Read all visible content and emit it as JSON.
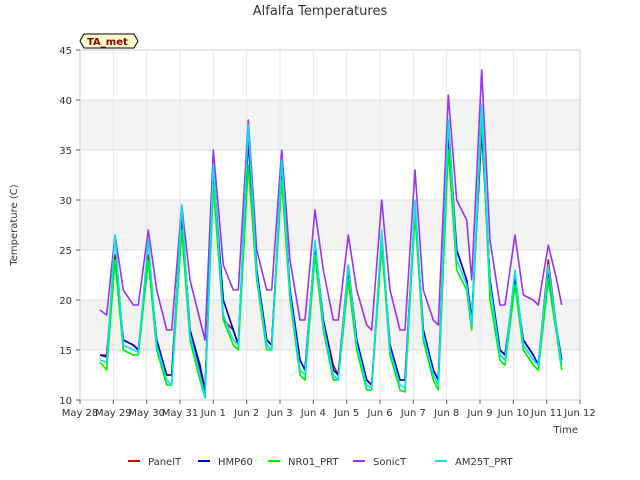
{
  "chart_data": {
    "type": "line",
    "title": "Alfalfa Temperatures",
    "xlabel": "Time",
    "ylabel": "Temperature (C)",
    "annotation": "TA_met",
    "xlim": [
      0,
      15
    ],
    "ylim": [
      10,
      45
    ],
    "x_ticks": [
      {
        "pos": 0,
        "label": "May 28"
      },
      {
        "pos": 1,
        "label": "May 29"
      },
      {
        "pos": 2,
        "label": "May 30"
      },
      {
        "pos": 3,
        "label": "May 31"
      },
      {
        "pos": 4,
        "label": "Jun 1"
      },
      {
        "pos": 5,
        "label": "Jun 2"
      },
      {
        "pos": 6,
        "label": "Jun 3"
      },
      {
        "pos": 7,
        "label": "Jun 4"
      },
      {
        "pos": 8,
        "label": "Jun 5"
      },
      {
        "pos": 9,
        "label": "Jun 6"
      },
      {
        "pos": 10,
        "label": "Jun 7"
      },
      {
        "pos": 11,
        "label": "Jun 8"
      },
      {
        "pos": 12,
        "label": "Jun 9"
      },
      {
        "pos": 13,
        "label": "Jun 10"
      },
      {
        "pos": 14,
        "label": "Jun 11"
      },
      {
        "pos": 15,
        "label": "Jun 12"
      }
    ],
    "y_ticks": [
      10,
      15,
      20,
      25,
      30,
      35,
      40,
      45
    ],
    "grid": true,
    "legend_position": "bottom",
    "series": [
      {
        "name": "PanelT",
        "color": "#cc0000",
        "x": [
          0.6,
          0.8,
          1.05,
          1.3,
          1.6,
          1.75,
          2.05,
          2.3,
          2.6,
          2.75,
          3.05,
          3.3,
          3.6,
          3.75,
          4.0,
          4.3,
          4.6,
          4.75,
          5.05,
          5.3,
          5.6,
          5.75,
          6.05,
          6.3,
          6.6,
          6.75,
          7.05,
          7.3,
          7.6,
          7.75,
          8.05,
          8.3,
          8.6,
          8.75,
          9.05,
          9.3,
          9.6,
          9.75,
          10.05,
          10.3,
          10.6,
          10.75,
          11.05,
          11.3,
          11.6,
          11.75,
          12.05,
          12.3,
          12.6,
          12.75,
          13.05,
          13.3,
          13.6,
          13.75,
          14.05,
          14.3,
          14.45
        ],
        "y": [
          14.5,
          14.5,
          24.5,
          16.0,
          15.5,
          15.0,
          24.5,
          16.0,
          12.5,
          12.5,
          28.5,
          17.0,
          13.0,
          10.5,
          33.5,
          18.0,
          17.0,
          15.5,
          37.0,
          23.0,
          16.0,
          15.5,
          33.5,
          21.0,
          14.0,
          13.0,
          25.5,
          18.0,
          13.5,
          12.5,
          23.5,
          16.0,
          12.0,
          11.5,
          26.0,
          15.5,
          12.0,
          12.0,
          29.5,
          17.0,
          13.0,
          12.0,
          38.0,
          25.0,
          22.0,
          18.0,
          37.5,
          22.0,
          15.0,
          14.5,
          22.0,
          16.0,
          14.5,
          13.5,
          24.0,
          17.0,
          14.0
        ]
      },
      {
        "name": "HMP60",
        "color": "#0000cc",
        "x": [
          0.6,
          0.8,
          1.05,
          1.3,
          1.6,
          1.75,
          2.05,
          2.3,
          2.6,
          2.75,
          3.05,
          3.3,
          3.6,
          3.75,
          4.0,
          4.3,
          4.6,
          4.75,
          5.05,
          5.3,
          5.6,
          5.75,
          6.05,
          6.3,
          6.6,
          6.75,
          7.05,
          7.3,
          7.6,
          7.75,
          8.05,
          8.3,
          8.6,
          8.75,
          9.05,
          9.3,
          9.6,
          9.75,
          10.05,
          10.3,
          10.6,
          10.75,
          11.05,
          11.3,
          11.6,
          11.75,
          12.05,
          12.3,
          12.6,
          12.75,
          13.05,
          13.3,
          13.6,
          13.75,
          14.05,
          14.3,
          14.45
        ],
        "y": [
          14.5,
          14.3,
          24.0,
          16.0,
          15.5,
          15.0,
          24.0,
          16.0,
          12.5,
          12.5,
          28.5,
          17.0,
          13.5,
          11.0,
          33.0,
          20.0,
          17.0,
          15.5,
          36.0,
          23.0,
          16.0,
          15.5,
          33.0,
          21.0,
          14.0,
          13.0,
          25.5,
          18.0,
          13.0,
          12.5,
          23.0,
          16.0,
          12.0,
          11.5,
          25.5,
          15.5,
          12.0,
          12.0,
          29.0,
          17.0,
          13.0,
          12.0,
          36.0,
          25.0,
          22.0,
          18.0,
          37.0,
          22.0,
          15.0,
          14.5,
          22.0,
          16.0,
          14.5,
          13.5,
          23.0,
          17.0,
          14.0
        ]
      },
      {
        "name": "NR01_PRT",
        "color": "#00ee00",
        "x": [
          0.6,
          0.8,
          1.05,
          1.3,
          1.6,
          1.75,
          2.05,
          2.3,
          2.6,
          2.75,
          3.05,
          3.3,
          3.6,
          3.75,
          4.0,
          4.3,
          4.6,
          4.75,
          5.05,
          5.3,
          5.6,
          5.75,
          6.05,
          6.3,
          6.6,
          6.75,
          7.05,
          7.3,
          7.6,
          7.75,
          8.05,
          8.3,
          8.6,
          8.75,
          9.05,
          9.3,
          9.6,
          9.75,
          10.05,
          10.3,
          10.6,
          10.75,
          11.05,
          11.3,
          11.6,
          11.75,
          12.05,
          12.3,
          12.6,
          12.75,
          13.05,
          13.3,
          13.6,
          13.75,
          14.05,
          14.3,
          14.45
        ],
        "y": [
          13.8,
          13.0,
          24.0,
          15.0,
          14.5,
          14.5,
          24.0,
          15.0,
          11.5,
          11.5,
          27.0,
          16.0,
          12.0,
          10.2,
          31.5,
          18.0,
          15.5,
          15.0,
          33.5,
          22.0,
          15.0,
          15.0,
          32.0,
          20.0,
          12.5,
          12.0,
          24.5,
          17.0,
          12.0,
          12.0,
          22.0,
          15.0,
          11.0,
          11.0,
          25.5,
          14.5,
          11.0,
          10.8,
          28.5,
          16.0,
          12.0,
          11.0,
          35.0,
          23.0,
          21.0,
          17.0,
          38.5,
          20.0,
          14.0,
          13.5,
          21.5,
          15.0,
          13.5,
          13.0,
          22.0,
          16.5,
          13.0
        ]
      },
      {
        "name": "SonicT",
        "color": "#9933ee",
        "x": [
          0.6,
          0.8,
          1.05,
          1.3,
          1.6,
          1.75,
          2.05,
          2.3,
          2.6,
          2.75,
          3.05,
          3.3,
          3.6,
          3.75,
          4.0,
          4.3,
          4.6,
          4.75,
          5.05,
          5.3,
          5.6,
          5.75,
          6.05,
          6.3,
          6.6,
          6.75,
          7.05,
          7.3,
          7.6,
          7.75,
          8.05,
          8.3,
          8.6,
          8.75,
          9.05,
          9.3,
          9.6,
          9.75,
          10.05,
          10.3,
          10.6,
          10.75,
          11.05,
          11.3,
          11.6,
          11.75,
          12.05,
          12.3,
          12.6,
          12.75,
          13.05,
          13.3,
          13.6,
          13.75,
          14.05,
          14.3,
          14.45
        ],
        "y": [
          19.0,
          18.5,
          26.5,
          21.0,
          19.5,
          19.5,
          27.0,
          21.0,
          17.0,
          17.0,
          29.5,
          22.0,
          18.0,
          16.0,
          35.0,
          23.5,
          21.0,
          21.0,
          38.0,
          25.0,
          21.0,
          21.0,
          35.0,
          24.0,
          18.0,
          18.0,
          29.0,
          23.0,
          18.0,
          18.0,
          26.5,
          21.0,
          17.5,
          17.0,
          30.0,
          21.0,
          17.0,
          17.0,
          33.0,
          21.0,
          18.0,
          17.5,
          40.5,
          30.0,
          28.0,
          22.0,
          43.0,
          26.0,
          19.5,
          19.5,
          26.5,
          20.5,
          20.0,
          19.5,
          25.5,
          22.0,
          19.5
        ]
      },
      {
        "name": "AM25T_PRT",
        "color": "#00e5ee",
        "x": [
          0.6,
          0.8,
          1.05,
          1.3,
          1.6,
          1.75,
          2.05,
          2.3,
          2.6,
          2.75,
          3.05,
          3.3,
          3.6,
          3.75,
          4.0,
          4.3,
          4.6,
          4.75,
          5.05,
          5.3,
          5.6,
          5.75,
          6.05,
          6.3,
          6.6,
          6.75,
          7.05,
          7.3,
          7.6,
          7.75,
          8.05,
          8.3,
          8.6,
          8.75,
          9.05,
          9.3,
          9.6,
          9.75,
          10.05,
          10.3,
          10.6,
          10.75,
          11.05,
          11.3,
          11.6,
          11.75,
          12.05,
          12.3,
          12.6,
          12.75,
          13.05,
          13.3,
          13.6,
          13.75,
          14.05,
          14.3,
          14.45
        ],
        "y": [
          14.0,
          13.8,
          26.5,
          15.5,
          15.0,
          14.8,
          26.0,
          15.5,
          12.0,
          11.5,
          29.5,
          16.5,
          12.5,
          10.2,
          33.5,
          18.5,
          16.0,
          15.5,
          37.5,
          22.5,
          15.5,
          15.0,
          34.0,
          20.5,
          13.0,
          12.5,
          26.0,
          17.5,
          12.5,
          12.0,
          23.5,
          15.5,
          11.5,
          11.2,
          27.0,
          15.0,
          11.5,
          11.2,
          30.0,
          16.5,
          12.5,
          11.5,
          38.0,
          24.0,
          21.5,
          17.5,
          39.5,
          21.5,
          14.5,
          14.0,
          23.0,
          15.5,
          14.0,
          13.5,
          23.5,
          17.0,
          13.5
        ]
      }
    ]
  }
}
